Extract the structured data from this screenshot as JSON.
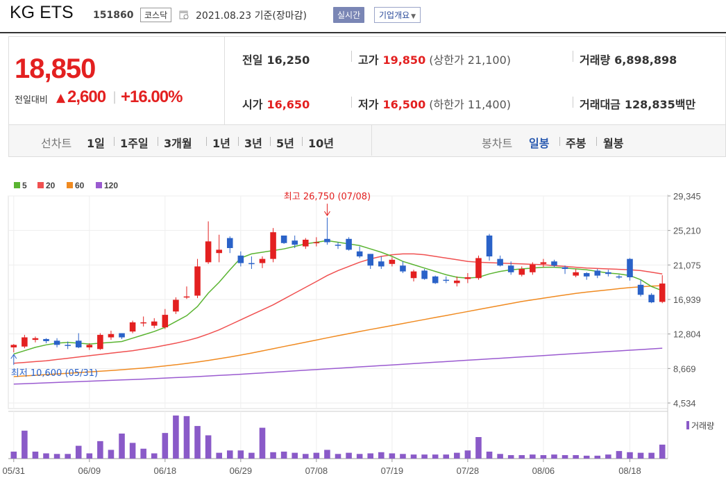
{
  "header": {
    "company": "KG ETS",
    "code": "151860",
    "market": "코스닥",
    "date": "2021.08.23 기준(장마감)",
    "realtime": "실시간",
    "overview": "기업개요",
    "overview_caret": "▼"
  },
  "price": {
    "current": "18,850",
    "change_label": "전일대비",
    "change_arrow": "▲",
    "change_value": "2,600",
    "change_sep": "|",
    "change_pct": "+16.00%"
  },
  "stats": {
    "prev_label": "전일",
    "prev": "16,250",
    "high_label": "고가",
    "high": "19,850",
    "upper_limit": "(상한가 21,100)",
    "volume_label": "거래량",
    "volume": "6,898,898",
    "open_label": "시가",
    "open": "16,650",
    "low_label": "저가",
    "low": "16,500",
    "lower_limit": "(하한가 11,400)",
    "amount_label": "거래대금",
    "amount": "128,835",
    "amount_unit": "백만"
  },
  "periods": {
    "line_title": "선차트",
    "line_items": [
      "1일",
      "1주일",
      "3개월",
      "1년",
      "3년",
      "5년",
      "10년"
    ],
    "candle_title": "봉차트",
    "candle_items": [
      "일봉",
      "주봉",
      "월봉"
    ],
    "candle_selected": "일봉"
  },
  "colors": {
    "up": "#e32020",
    "down": "#2a62c8",
    "ma5": "#5ab431",
    "ma20": "#f05050",
    "ma60": "#f08a20",
    "ma120": "#9a5ad0",
    "volume": "#8a5ac8"
  },
  "chart_data": {
    "type": "candlestick",
    "legend": [
      {
        "name": "5",
        "color": "#5ab431"
      },
      {
        "name": "20",
        "color": "#f05050"
      },
      {
        "name": "60",
        "color": "#f08a20"
      },
      {
        "name": "120",
        "color": "#9a5ad0"
      }
    ],
    "y_ticks": [
      "29,345",
      "25,210",
      "21,075",
      "16,939",
      "12,804",
      "8,669",
      "4,534"
    ],
    "ylim": [
      4534,
      29345
    ],
    "x_tick_labels": [
      "05/31",
      "06/09",
      "06/18",
      "06/29",
      "07/08",
      "07/19",
      "07/28",
      "08/06",
      "08/18"
    ],
    "x_tick_index": [
      0,
      7,
      14,
      21,
      28,
      35,
      42,
      49,
      57
    ],
    "annotations": {
      "max": "최고 26,750 (07/08)",
      "min": "최저 10,600 (05/31)"
    },
    "volume_legend": "거래량",
    "candles": [
      {
        "o": 11200,
        "h": 11600,
        "l": 10600,
        "c": 11500
      },
      {
        "o": 11300,
        "h": 12700,
        "l": 11100,
        "c": 12400
      },
      {
        "o": 12100,
        "h": 12500,
        "l": 11800,
        "c": 12300
      },
      {
        "o": 12200,
        "h": 12300,
        "l": 11700,
        "c": 11950
      },
      {
        "o": 12000,
        "h": 12300,
        "l": 11200,
        "c": 11500
      },
      {
        "o": 11500,
        "h": 11900,
        "l": 11000,
        "c": 11400
      },
      {
        "o": 12000,
        "h": 12900,
        "l": 11100,
        "c": 11200
      },
      {
        "o": 11200,
        "h": 11700,
        "l": 10900,
        "c": 11500
      },
      {
        "o": 11000,
        "h": 12900,
        "l": 10900,
        "c": 12700
      },
      {
        "o": 12400,
        "h": 13200,
        "l": 12100,
        "c": 12800
      },
      {
        "o": 12900,
        "h": 12900,
        "l": 12200,
        "c": 12400
      },
      {
        "o": 13100,
        "h": 14400,
        "l": 12900,
        "c": 14200
      },
      {
        "o": 14100,
        "h": 14900,
        "l": 13700,
        "c": 14200
      },
      {
        "o": 13800,
        "h": 14700,
        "l": 13500,
        "c": 14300
      },
      {
        "o": 13600,
        "h": 15800,
        "l": 13400,
        "c": 15100
      },
      {
        "o": 15500,
        "h": 17200,
        "l": 15200,
        "c": 16900
      },
      {
        "o": 17200,
        "h": 18500,
        "l": 17000,
        "c": 17300
      },
      {
        "o": 17400,
        "h": 21800,
        "l": 17100,
        "c": 20900
      },
      {
        "o": 21400,
        "h": 26300,
        "l": 21200,
        "c": 23900
      },
      {
        "o": 22500,
        "h": 24700,
        "l": 21400,
        "c": 22900
      },
      {
        "o": 24300,
        "h": 24500,
        "l": 22500,
        "c": 23100
      },
      {
        "o": 22200,
        "h": 22700,
        "l": 20900,
        "c": 21300
      },
      {
        "o": 21300,
        "h": 22100,
        "l": 20600,
        "c": 21200
      },
      {
        "o": 21300,
        "h": 22100,
        "l": 20700,
        "c": 21800
      },
      {
        "o": 21800,
        "h": 25500,
        "l": 21400,
        "c": 25000
      },
      {
        "o": 24600,
        "h": 24600,
        "l": 23600,
        "c": 23700
      },
      {
        "o": 24000,
        "h": 24600,
        "l": 23100,
        "c": 23500
      },
      {
        "o": 23300,
        "h": 24300,
        "l": 23000,
        "c": 24100
      },
      {
        "o": 23700,
        "h": 24400,
        "l": 23300,
        "c": 23800
      },
      {
        "o": 24200,
        "h": 26750,
        "l": 23500,
        "c": 23800
      },
      {
        "o": 23500,
        "h": 23800,
        "l": 23000,
        "c": 23400
      },
      {
        "o": 24200,
        "h": 24400,
        "l": 22800,
        "c": 22900
      },
      {
        "o": 22700,
        "h": 23300,
        "l": 21900,
        "c": 22100
      },
      {
        "o": 22400,
        "h": 22400,
        "l": 20600,
        "c": 21000
      },
      {
        "o": 21500,
        "h": 22100,
        "l": 20600,
        "c": 20900
      },
      {
        "o": 21200,
        "h": 22000,
        "l": 20900,
        "c": 21700
      },
      {
        "o": 21000,
        "h": 21500,
        "l": 20100,
        "c": 20300
      },
      {
        "o": 19500,
        "h": 20500,
        "l": 19100,
        "c": 20300
      },
      {
        "o": 20400,
        "h": 20600,
        "l": 19300,
        "c": 19400
      },
      {
        "o": 19700,
        "h": 19800,
        "l": 18800,
        "c": 18900
      },
      {
        "o": 19300,
        "h": 19700,
        "l": 18900,
        "c": 19200
      },
      {
        "o": 18900,
        "h": 19700,
        "l": 18500,
        "c": 19200
      },
      {
        "o": 19400,
        "h": 20100,
        "l": 18900,
        "c": 19600
      },
      {
        "o": 19500,
        "h": 22200,
        "l": 19300,
        "c": 21900
      },
      {
        "o": 24600,
        "h": 24800,
        "l": 21600,
        "c": 22100
      },
      {
        "o": 21800,
        "h": 22200,
        "l": 20900,
        "c": 21000
      },
      {
        "o": 21000,
        "h": 21500,
        "l": 19900,
        "c": 20200
      },
      {
        "o": 19900,
        "h": 20900,
        "l": 19700,
        "c": 20600
      },
      {
        "o": 20200,
        "h": 21400,
        "l": 19900,
        "c": 21100
      },
      {
        "o": 21200,
        "h": 21800,
        "l": 20800,
        "c": 21400
      },
      {
        "o": 21500,
        "h": 21700,
        "l": 20800,
        "c": 21000
      },
      {
        "o": 20800,
        "h": 21000,
        "l": 20000,
        "c": 20600
      },
      {
        "o": 19800,
        "h": 20600,
        "l": 19600,
        "c": 20200
      },
      {
        "o": 20100,
        "h": 20200,
        "l": 19300,
        "c": 19700
      },
      {
        "o": 20400,
        "h": 20600,
        "l": 19500,
        "c": 19800
      },
      {
        "o": 20200,
        "h": 20500,
        "l": 19700,
        "c": 20000
      },
      {
        "o": 19700,
        "h": 19900,
        "l": 19400,
        "c": 19600
      },
      {
        "o": 21800,
        "h": 21900,
        "l": 19200,
        "c": 19600
      },
      {
        "o": 18700,
        "h": 19300,
        "l": 17300,
        "c": 17500
      },
      {
        "o": 17500,
        "h": 17700,
        "l": 16500,
        "c": 16600
      },
      {
        "o": 16650,
        "h": 19850,
        "l": 16500,
        "c": 18850
      }
    ],
    "ma5": [
      10400,
      10800,
      11200,
      11500,
      11700,
      11800,
      11700,
      11600,
      11700,
      11800,
      11900,
      12300,
      12700,
      13100,
      13600,
      14300,
      15000,
      16100,
      17700,
      19000,
      20500,
      21900,
      22400,
      22600,
      22800,
      23000,
      23300,
      23600,
      23800,
      24000,
      23800,
      23600,
      23400,
      23000,
      22600,
      22100,
      21500,
      21100,
      20700,
      20300,
      19900,
      19600,
      19500,
      19600,
      20000,
      20300,
      20500,
      20600,
      20700,
      20800,
      20800,
      20700,
      20600,
      20500,
      20300,
      20100,
      20000,
      19800,
      19300,
      18500,
      18000
    ],
    "ma20": [
      9300,
      9400,
      9500,
      9600,
      9750,
      9900,
      10050,
      10200,
      10350,
      10500,
      10650,
      10800,
      11000,
      11200,
      11450,
      11700,
      12000,
      12350,
      12800,
      13300,
      13900,
      14500,
      15100,
      15700,
      16300,
      17000,
      17700,
      18400,
      19100,
      19800,
      20400,
      20900,
      21400,
      21800,
      22100,
      22300,
      22400,
      22400,
      22300,
      22100,
      21900,
      21700,
      21500,
      21400,
      21350,
      21300,
      21250,
      21200,
      21150,
      21100,
      21000,
      20900,
      20800,
      20700,
      20650,
      20600,
      20550,
      20500,
      20400,
      20200,
      20000
    ],
    "ma60": [
      7700,
      7780,
      7860,
      7940,
      8020,
      8100,
      8180,
      8260,
      8340,
      8420,
      8520,
      8620,
      8720,
      8850,
      8980,
      9120,
      9280,
      9450,
      9640,
      9840,
      10050,
      10280,
      10520,
      10780,
      11040,
      11300,
      11560,
      11820,
      12080,
      12340,
      12600,
      12850,
      13100,
      13340,
      13580,
      13820,
      14060,
      14300,
      14540,
      14780,
      15020,
      15260,
      15500,
      15740,
      15980,
      16220,
      16460,
      16700,
      16900,
      17100,
      17300,
      17480,
      17660,
      17820,
      17960,
      18100,
      18240,
      18360,
      18460,
      18540,
      18600
    ],
    "ma120": [
      6800,
      6850,
      6900,
      6950,
      7000,
      7050,
      7100,
      7150,
      7200,
      7250,
      7300,
      7350,
      7400,
      7460,
      7520,
      7580,
      7640,
      7700,
      7770,
      7840,
      7910,
      7980,
      8060,
      8140,
      8220,
      8300,
      8380,
      8460,
      8540,
      8620,
      8700,
      8780,
      8860,
      8940,
      9020,
      9100,
      9180,
      9260,
      9340,
      9420,
      9500,
      9580,
      9660,
      9740,
      9820,
      9900,
      9980,
      10060,
      10140,
      10220,
      10300,
      10380,
      10460,
      10540,
      10620,
      10700,
      10780,
      10860,
      10940,
      11020,
      11100
    ],
    "volume": [
      120,
      480,
      120,
      90,
      80,
      80,
      220,
      90,
      300,
      150,
      430,
      270,
      170,
      90,
      440,
      740,
      730,
      560,
      400,
      100,
      140,
      140,
      100,
      530,
      110,
      120,
      100,
      80,
      100,
      150,
      80,
      100,
      80,
      90,
      110,
      90,
      80,
      70,
      70,
      70,
      70,
      100,
      140,
      370,
      120,
      80,
      60,
      60,
      70,
      60,
      70,
      60,
      60,
      50,
      50,
      70,
      130,
      110,
      100,
      100,
      240
    ]
  }
}
